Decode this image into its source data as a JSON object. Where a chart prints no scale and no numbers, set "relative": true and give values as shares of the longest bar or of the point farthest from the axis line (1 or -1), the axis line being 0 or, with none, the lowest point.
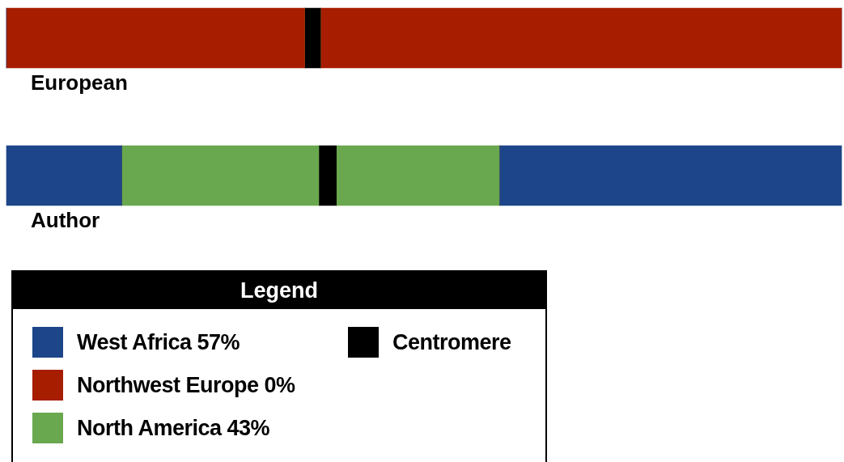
{
  "chart_data": {
    "type": "bar",
    "orientation": "horizontal",
    "stacked": true,
    "relative": true,
    "legend": "bottom left",
    "legend_title": "Legend",
    "categories": [
      "European",
      "Author"
    ],
    "series": [
      {
        "name": "West Africa 57%",
        "color": "#1d4589",
        "values": [
          0,
          0.138
        ]
      },
      {
        "name": "Northwest Europe 0%",
        "color": "#a71d00",
        "values": [
          0.357,
          0
        ]
      },
      {
        "name": "North America 43%",
        "color": "#69a84f",
        "values": [
          0,
          0.236
        ]
      },
      {
        "name": "Centromere",
        "color": "#000000",
        "values": [
          0.019,
          0.021
        ]
      },
      {
        "color": "#69a84f",
        "values": [
          0,
          0.195
        ]
      },
      {
        "color": "#a71d00",
        "values": [
          0.624,
          0
        ]
      },
      {
        "color": "#1d4589",
        "values": [
          0,
          0.41
        ]
      }
    ]
  }
}
